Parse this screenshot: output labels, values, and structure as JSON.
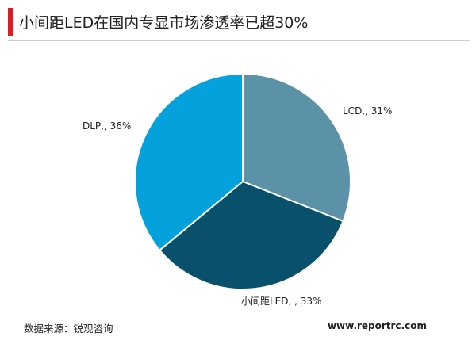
{
  "title": "小间距LED在国内专显市场渗透率已超30%",
  "chart_data": {
    "type": "pie",
    "slices": [
      {
        "label": "LCD,, 31%",
        "name": "LCD",
        "value": 31,
        "color": "#5b92a8"
      },
      {
        "label": "小间距LED, , 33%",
        "name": "小间距LED",
        "value": 33,
        "color": "#08506b"
      },
      {
        "label": "DLP,, 36%",
        "name": "DLP",
        "value": 36,
        "color": "#05a1dc"
      }
    ]
  },
  "footer": {
    "source": "数据来源：锐观咨询",
    "website": "www.reportrc.com"
  }
}
